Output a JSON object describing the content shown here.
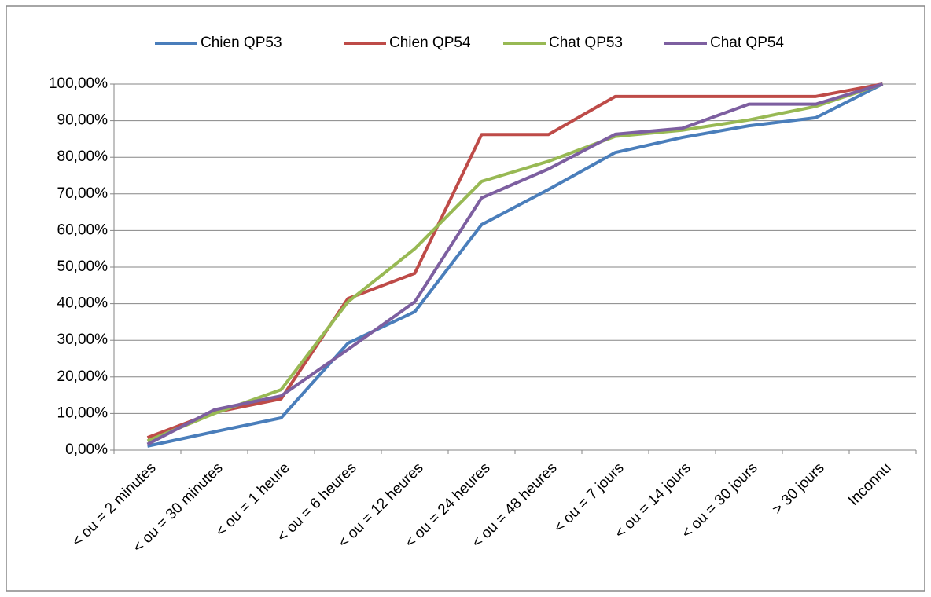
{
  "chart_data": {
    "type": "line",
    "categories": [
      "< ou = 2 minutes",
      "< ou = 30 minutes",
      "< ou = 1 heure",
      "< ou = 6 heures",
      "< ou = 12 heures",
      "< ou = 24 heures",
      "< ou = 48 heures",
      "< ou = 7 jours",
      "< ou = 14 jours",
      "< ou = 30 jours",
      "> 30 jours",
      "Inconnu"
    ],
    "series": [
      {
        "name": "Chien QP53",
        "color": "#4a7ebb",
        "values": [
          1.1,
          5,
          8.8,
          29.2,
          37.8,
          61.6,
          71.2,
          81.3,
          85.4,
          88.6,
          90.8,
          100
        ]
      },
      {
        "name": "Chien QP54",
        "color": "#be4b48",
        "values": [
          3.4,
          10.3,
          14,
          41.4,
          48.3,
          86.2,
          86.2,
          96.6,
          96.6,
          96.6,
          96.6,
          100
        ]
      },
      {
        "name": "Chat QP53",
        "color": "#98b954",
        "values": [
          2.5,
          10,
          16.5,
          40.5,
          55,
          73.4,
          78.9,
          85.7,
          87.4,
          90.2,
          93.9,
          100
        ]
      },
      {
        "name": "Chat QP54",
        "color": "#7d5fa0",
        "values": [
          1.6,
          11,
          14.8,
          27.5,
          40.5,
          68.9,
          76.8,
          86.3,
          87.9,
          94.5,
          94.5,
          100
        ]
      }
    ],
    "ylim": [
      0,
      100
    ],
    "yticks": [
      {
        "value": 0,
        "label": "0,00%"
      },
      {
        "value": 10,
        "label": "10,00%"
      },
      {
        "value": 20,
        "label": "20,00%"
      },
      {
        "value": 30,
        "label": "30,00%"
      },
      {
        "value": 40,
        "label": "40,00%"
      },
      {
        "value": 50,
        "label": "50,00%"
      },
      {
        "value": 60,
        "label": "60,00%"
      },
      {
        "value": 70,
        "label": "70,00%"
      },
      {
        "value": 80,
        "label": "80,00%"
      },
      {
        "value": 90,
        "label": "90,00%"
      },
      {
        "value": 100,
        "label": "100,00%"
      }
    ],
    "grid": true,
    "legend": "top"
  }
}
